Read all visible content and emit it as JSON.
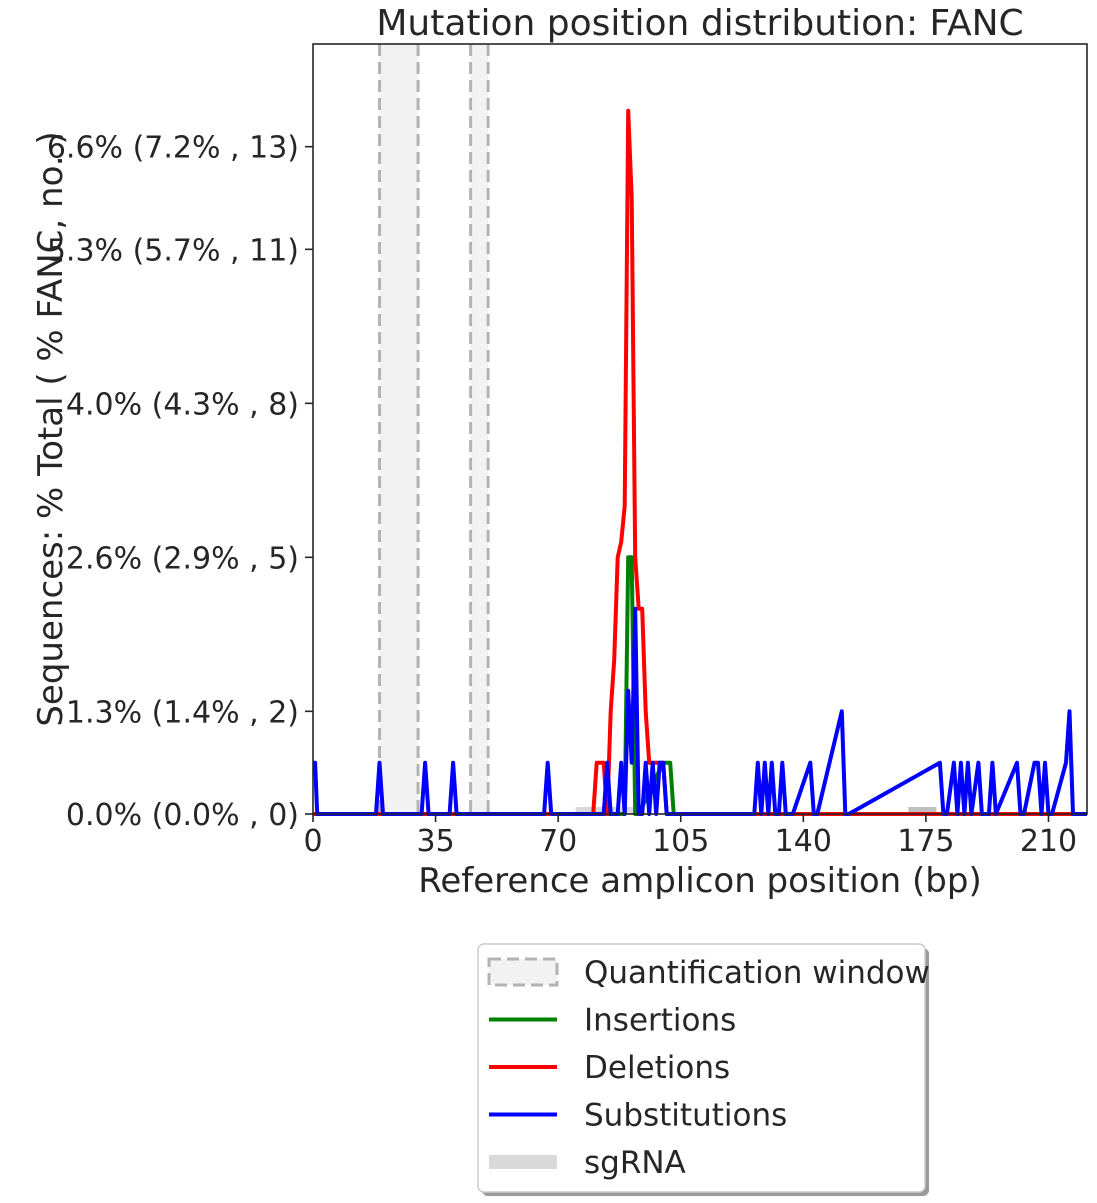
{
  "chart_data": {
    "type": "line",
    "title": "Mutation position distribution: FANC",
    "xlabel": "Reference amplicon position (bp)",
    "ylabel": "Sequences: % Total ( % FANC, no. )",
    "xlim": [
      0,
      221
    ],
    "ylim": [
      0,
      15
    ],
    "x_ticks": [
      {
        "value": 0,
        "label": "0"
      },
      {
        "value": 35,
        "label": "35"
      },
      {
        "value": 70,
        "label": "70"
      },
      {
        "value": 105,
        "label": "105"
      },
      {
        "value": 140,
        "label": "140"
      },
      {
        "value": 175,
        "label": "175"
      },
      {
        "value": 210,
        "label": "210"
      }
    ],
    "y_ticks": [
      {
        "value": 0,
        "label": "0.0% (0.0% , 0)"
      },
      {
        "value": 2,
        "label": "1.3% (1.4% , 2)"
      },
      {
        "value": 5,
        "label": "2.6% (2.9% , 5)"
      },
      {
        "value": 8,
        "label": "4.0% (4.3% , 8)"
      },
      {
        "value": 11,
        "label": "5.3% (5.7% , 11)"
      },
      {
        "value": 13,
        "label": "6.6% (7.2% , 13)"
      }
    ],
    "quantification_windows": [
      [
        19,
        30
      ],
      [
        45,
        50
      ]
    ],
    "sgrna": [
      {
        "start": 75,
        "end": 93,
        "color": "#d9d9d9"
      },
      {
        "start": 170,
        "end": 178,
        "color": "#bfbfbf"
      }
    ],
    "series": [
      {
        "name": "Insertions",
        "color": "#008000",
        "x": [
          0,
          89,
          90,
          91,
          92,
          93,
          100,
          101,
          102,
          103,
          221
        ],
        "y": [
          0,
          0,
          5,
          5,
          0,
          0,
          1,
          1,
          1,
          0,
          0
        ]
      },
      {
        "name": "Deletions",
        "color": "#ff0000",
        "x": [
          0,
          80,
          81,
          83,
          84,
          85,
          86,
          87,
          88,
          89,
          90,
          91,
          92,
          93,
          94,
          95,
          96,
          97,
          98,
          99,
          100,
          101,
          102,
          221
        ],
        "y": [
          0,
          0,
          1,
          1,
          0,
          2,
          3,
          5,
          5.3,
          6,
          13.7,
          12,
          5,
          4,
          4,
          2,
          1,
          1,
          1,
          1,
          1,
          0,
          0,
          0
        ]
      },
      {
        "name": "Substitutions",
        "color": "#0000ff",
        "x": [
          0,
          0.6,
          1.2,
          18,
          19,
          20,
          31,
          32,
          33,
          39,
          40,
          41,
          66,
          67,
          68,
          83,
          84,
          85,
          87,
          88,
          89,
          90,
          91,
          92,
          93,
          94,
          95,
          96,
          97,
          98,
          99,
          100,
          101,
          102,
          126,
          127,
          128,
          129,
          130,
          131,
          132,
          133,
          134,
          135,
          136,
          137,
          142,
          143,
          144,
          151,
          152,
          153,
          179,
          180,
          181,
          183,
          184,
          185,
          186,
          187,
          188,
          190,
          191,
          192,
          193,
          194,
          195,
          201,
          202,
          203,
          206,
          207,
          208,
          209,
          210,
          211,
          215,
          216,
          217,
          218,
          221
        ],
        "y": [
          1,
          1,
          0,
          0,
          1,
          0,
          0,
          1,
          0,
          0,
          1,
          0,
          0,
          1,
          0,
          0,
          1,
          0,
          0,
          1,
          0,
          2.4,
          1,
          4,
          0,
          0,
          1,
          0,
          1,
          0,
          1,
          1,
          0,
          0,
          0,
          1,
          0,
          1,
          0,
          1,
          0,
          0,
          1,
          0,
          0,
          0,
          1,
          0,
          0,
          2,
          0,
          0,
          1,
          0,
          0,
          1,
          0,
          1,
          0,
          1,
          0,
          1,
          0,
          0,
          0,
          1,
          0,
          1,
          0,
          0,
          1,
          1,
          0,
          1,
          0,
          0,
          1,
          2,
          0,
          0,
          0
        ]
      }
    ],
    "legend": {
      "placement": "bottom-center",
      "entries": [
        {
          "label": "Quantification window",
          "kind": "window"
        },
        {
          "label": "Insertions",
          "kind": "line",
          "color": "#008000"
        },
        {
          "label": "Deletions",
          "kind": "line",
          "color": "#ff0000"
        },
        {
          "label": "Substitutions",
          "kind": "line",
          "color": "#0000ff"
        },
        {
          "label": "sgRNA",
          "kind": "bar",
          "color": "#d9d9d9"
        }
      ]
    },
    "grid": false
  }
}
